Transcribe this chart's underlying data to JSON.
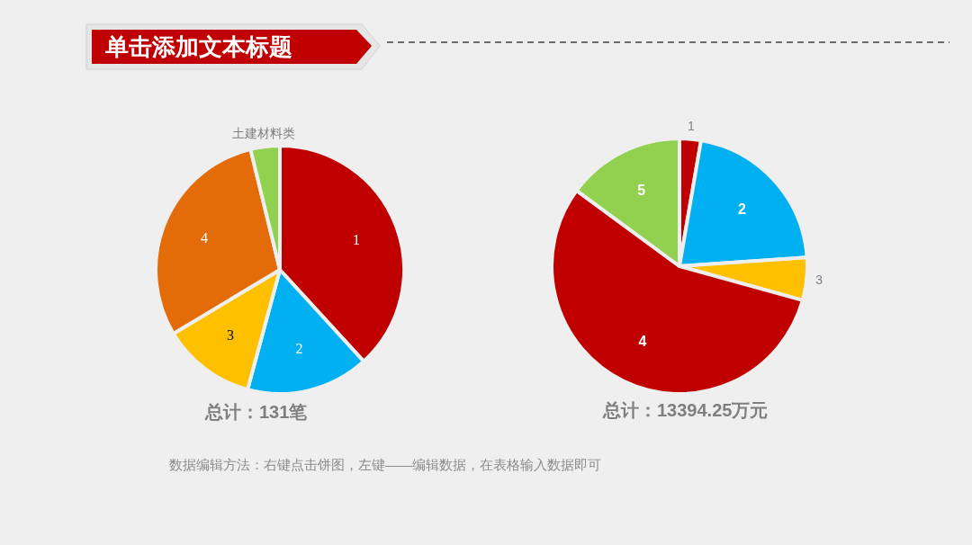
{
  "chart_data": [
    {
      "type": "pie",
      "title": "单击添加文本标题",
      "categories": [
        "1",
        "2",
        "3",
        "4",
        "土建材料类"
      ],
      "values": [
        38.2,
        16.0,
        12.2,
        29.8,
        3.8
      ],
      "colors": [
        "#c00000",
        "#00b0f0",
        "#ffc000",
        "#e36c09",
        "#92d050"
      ],
      "annotations": [
        "总计：131笔",
        "数据编辑方法：右键点击饼图，左键——编辑数据，在表格输入数据即可"
      ]
    },
    {
      "type": "pie",
      "categories": [
        "1",
        "2",
        "3",
        "4",
        "5"
      ],
      "values": [
        2.7,
        21.2,
        5.4,
        55.8,
        14.9
      ],
      "colors": [
        "#c00000",
        "#00b0f0",
        "#ffc000",
        "#c00000",
        "#92d050"
      ],
      "annotations": [
        "总计：13394.25万元"
      ]
    }
  ]
}
